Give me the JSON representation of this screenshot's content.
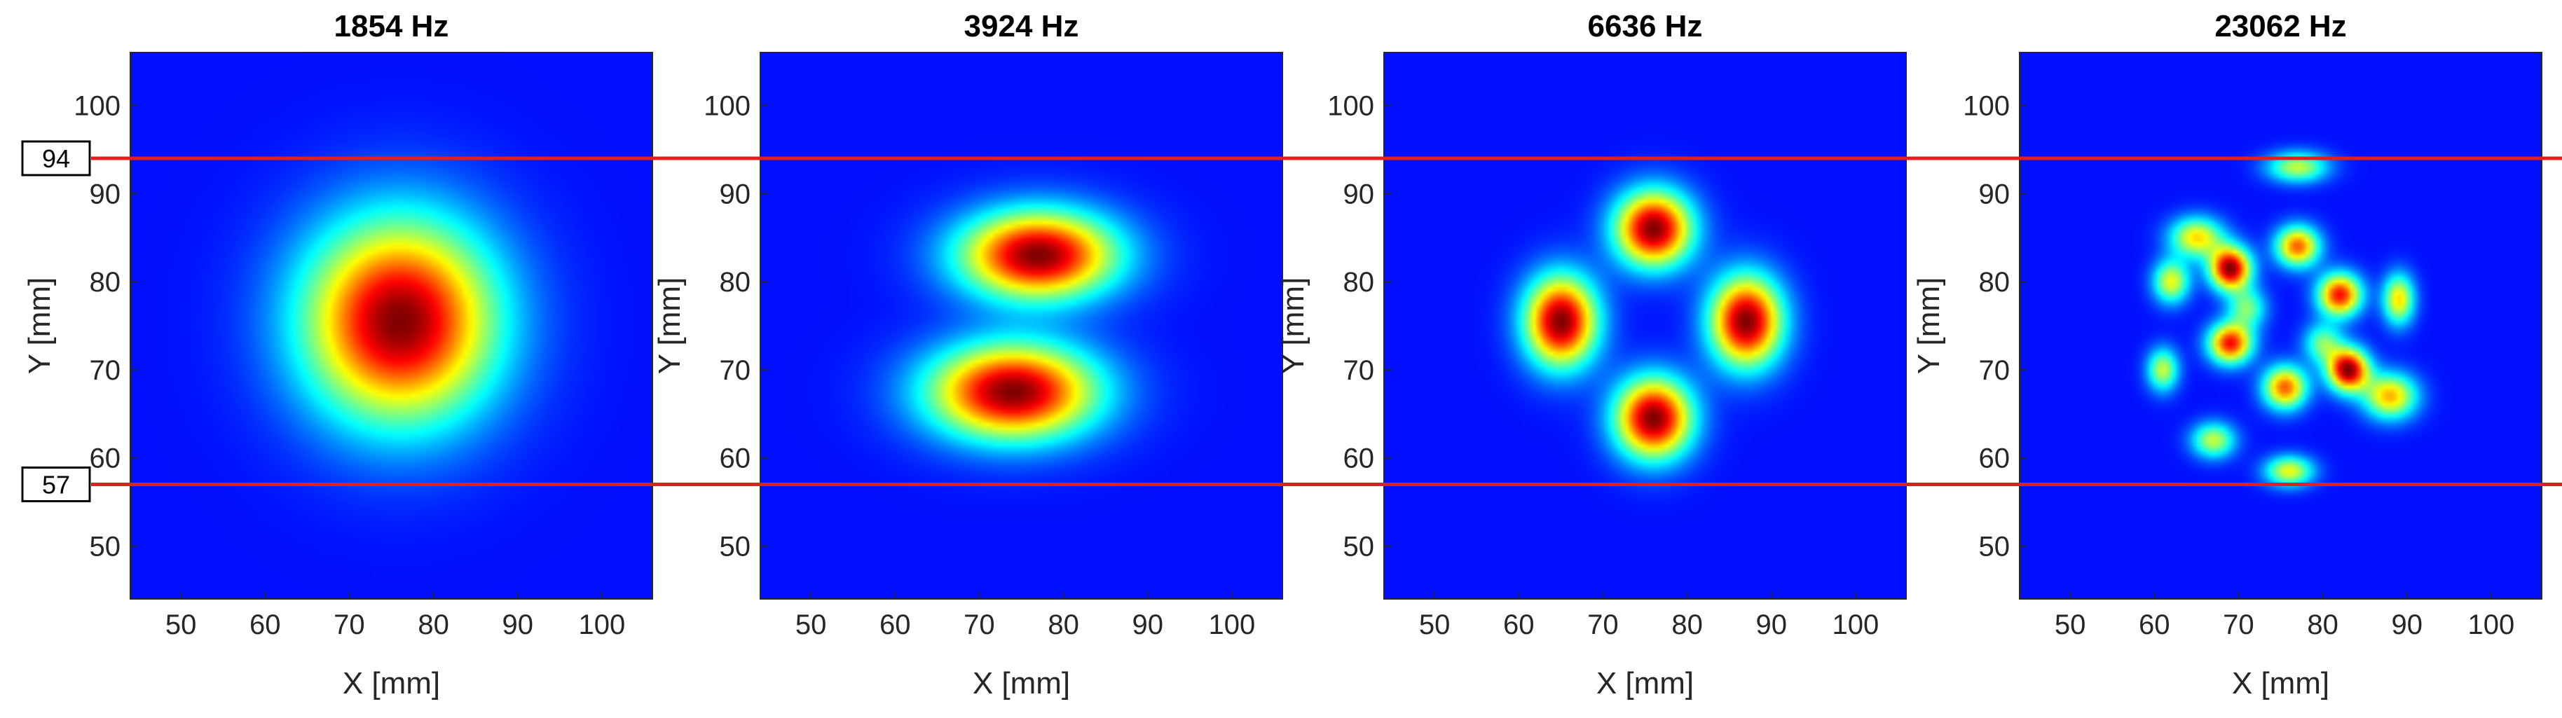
{
  "chart_data": {
    "type": "heatmap",
    "colormap": "jet",
    "xlabel": "X [mm]",
    "ylabel": "Y [mm]",
    "xlim": [
      44,
      106
    ],
    "ylim": [
      44,
      106
    ],
    "xticks": [
      50,
      60,
      70,
      80,
      90,
      100
    ],
    "yticks": [
      50,
      60,
      70,
      80,
      90,
      100
    ],
    "grid": false,
    "reference_lines": [
      {
        "y": 94,
        "label": "94",
        "color": "#e02020"
      },
      {
        "y": 57,
        "label": "57",
        "color": "#e02020"
      }
    ],
    "panels": [
      {
        "title": "1854 Hz",
        "peaks": [
          {
            "x": 76,
            "y": 75.5,
            "sx": 8,
            "sy": 8,
            "amp": 1.0
          }
        ]
      },
      {
        "title": "3924 Hz",
        "peaks": [
          {
            "x": 77,
            "y": 83,
            "sx": 6.5,
            "sy": 3.5,
            "amp": 1.0
          },
          {
            "x": 74,
            "y": 67.5,
            "sx": 7,
            "sy": 3.8,
            "amp": 1.0
          }
        ]
      },
      {
        "title": "6636 Hz",
        "peaks": [
          {
            "x": 76,
            "y": 86,
            "sx": 3.2,
            "sy": 3,
            "amp": 1.0
          },
          {
            "x": 76,
            "y": 64.5,
            "sx": 3.2,
            "sy": 3.2,
            "amp": 1.0
          },
          {
            "x": 65,
            "y": 75.5,
            "sx": 3,
            "sy": 3.6,
            "amp": 1.0
          },
          {
            "x": 87,
            "y": 75.5,
            "sx": 3,
            "sy": 3.6,
            "amp": 1.0
          }
        ]
      },
      {
        "title": "23062 Hz",
        "peaks": [
          {
            "x": 69,
            "y": 81.5,
            "sx": 1.7,
            "sy": 1.7,
            "amp": 1.0
          },
          {
            "x": 83,
            "y": 70,
            "sx": 1.7,
            "sy": 1.7,
            "amp": 1.0
          },
          {
            "x": 82,
            "y": 78.5,
            "sx": 1.8,
            "sy": 1.7,
            "amp": 0.85
          },
          {
            "x": 69,
            "y": 73,
            "sx": 1.8,
            "sy": 1.6,
            "amp": 0.85
          },
          {
            "x": 77,
            "y": 84,
            "sx": 1.8,
            "sy": 1.6,
            "amp": 0.75
          },
          {
            "x": 75.5,
            "y": 68,
            "sx": 1.8,
            "sy": 1.7,
            "amp": 0.75
          },
          {
            "x": 65,
            "y": 85,
            "sx": 2.2,
            "sy": 1.6,
            "amp": 0.6
          },
          {
            "x": 62,
            "y": 80,
            "sx": 1.5,
            "sy": 1.7,
            "amp": 0.55
          },
          {
            "x": 77,
            "y": 93,
            "sx": 2.5,
            "sy": 1.2,
            "amp": 0.5
          },
          {
            "x": 89,
            "y": 78,
            "sx": 1.3,
            "sy": 2,
            "amp": 0.6
          },
          {
            "x": 88,
            "y": 67,
            "sx": 2.2,
            "sy": 1.8,
            "amp": 0.65
          },
          {
            "x": 76,
            "y": 58.5,
            "sx": 2,
            "sy": 1.2,
            "amp": 0.55
          },
          {
            "x": 61,
            "y": 70,
            "sx": 1.3,
            "sy": 1.7,
            "amp": 0.5
          },
          {
            "x": 67,
            "y": 62,
            "sx": 1.8,
            "sy": 1.4,
            "amp": 0.5
          },
          {
            "x": 71,
            "y": 77,
            "sx": 1.6,
            "sy": 1.6,
            "amp": 0.4
          },
          {
            "x": 80,
            "y": 73,
            "sx": 1.6,
            "sy": 1.6,
            "amp": 0.4
          }
        ]
      }
    ]
  }
}
